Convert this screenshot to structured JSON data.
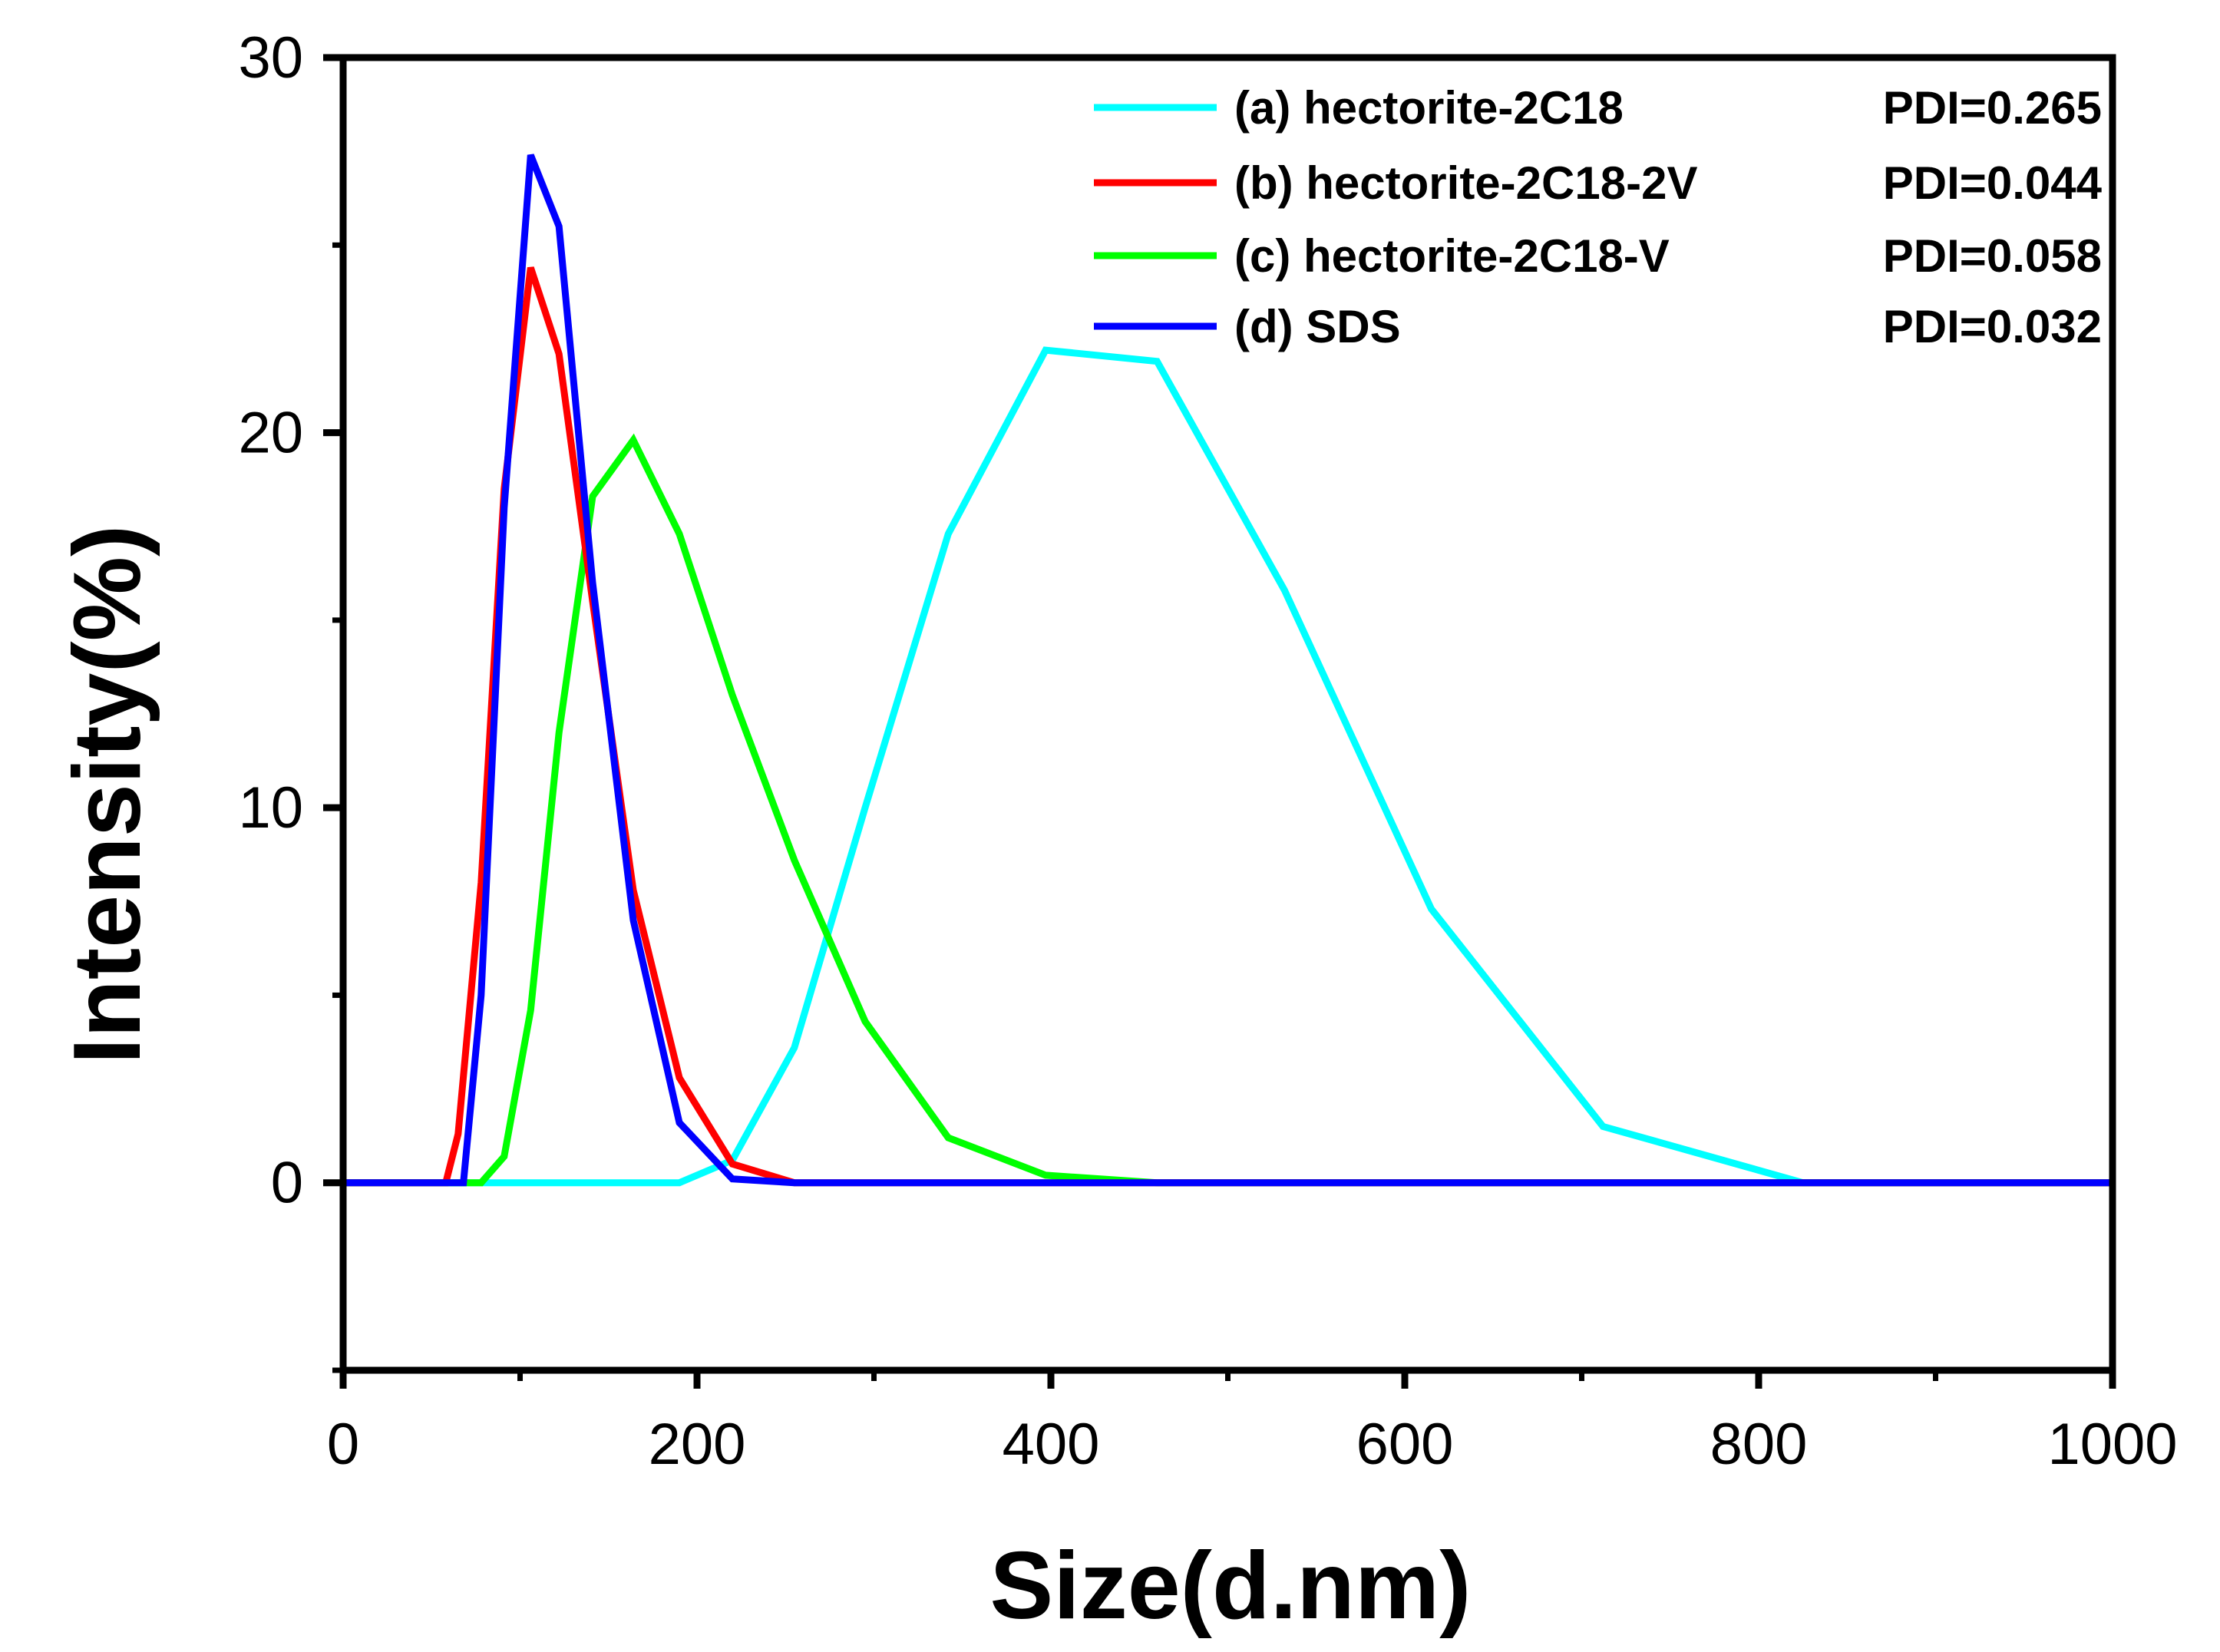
{
  "chart_data": {
    "type": "line",
    "title": "",
    "xlabel": "Size(d.nm)",
    "ylabel": "Intensity(%)",
    "xlim": [
      0,
      1000
    ],
    "ylim": [
      -5,
      30
    ],
    "x_ticks": [
      0,
      200,
      400,
      600,
      800,
      1000
    ],
    "y_ticks": [
      0,
      10,
      20,
      30
    ],
    "grid": false,
    "legend_position": "top-right",
    "series": [
      {
        "name": "(a) hectorite-2C18",
        "pdi": "PDI=0.265",
        "color": "#00FFFF",
        "x": [
          0,
          190,
          220,
          255,
          295,
          342,
          397,
          460,
          532,
          615,
          712,
          825,
          1000
        ],
        "y": [
          0,
          0,
          0.6,
          3.6,
          10.0,
          17.3,
          22.2,
          21.9,
          15.8,
          7.3,
          1.5,
          0,
          0
        ]
      },
      {
        "name": "(b) hectorite-2C18-2V",
        "pdi": "PDI=0.044",
        "color": "#FF0000",
        "x": [
          0,
          58,
          65,
          78,
          91,
          106,
          122,
          141,
          164,
          190,
          220,
          255,
          1000
        ],
        "y": [
          0,
          0,
          1.3,
          8.0,
          18.5,
          24.4,
          22.1,
          15.5,
          7.8,
          2.8,
          0.5,
          0,
          0
        ]
      },
      {
        "name": "(c) hectorite-2C18-V",
        "pdi": "PDI=0.058",
        "color": "#00FF00",
        "x": [
          0,
          78,
          91,
          106,
          122,
          141,
          164,
          190,
          220,
          255,
          295,
          342,
          397,
          460,
          1000
        ],
        "y": [
          0,
          0,
          0.7,
          4.6,
          12.0,
          18.3,
          19.8,
          17.3,
          13.0,
          8.6,
          4.3,
          1.2,
          0.2,
          0,
          0
        ]
      },
      {
        "name": "(d) SDS",
        "pdi": "PDI=0.032",
        "color": "#0000FF",
        "x": [
          0,
          68,
          78,
          91,
          106,
          122,
          141,
          164,
          190,
          220,
          255,
          1000
        ],
        "y": [
          0,
          0,
          5.0,
          18.0,
          27.4,
          25.5,
          16.0,
          7.0,
          1.6,
          0.1,
          0,
          0
        ]
      }
    ]
  }
}
